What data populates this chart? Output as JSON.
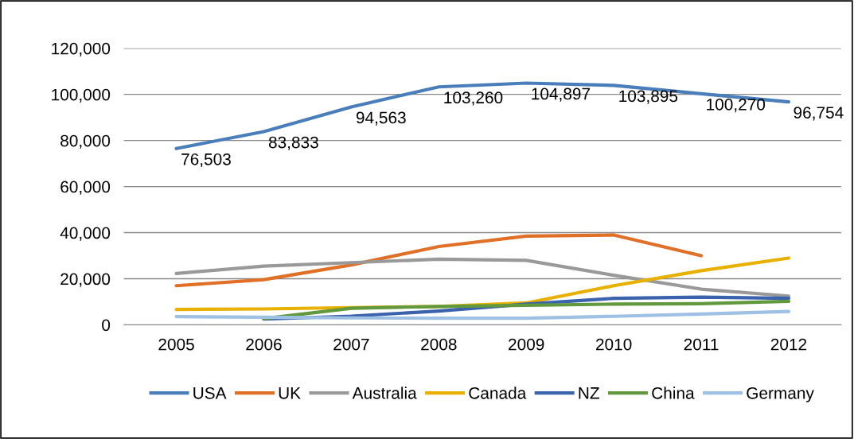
{
  "chart_data": {
    "type": "line",
    "categories": [
      "2005",
      "2006",
      "2007",
      "2008",
      "2009",
      "2010",
      "2011",
      "2012"
    ],
    "ylim": [
      0,
      120000
    ],
    "yticks": [
      0,
      {
        "value": 20000,
        "label": "20,000"
      },
      {
        "value": 40000,
        "label": "40,000"
      },
      {
        "value": 60000,
        "label": "60,000"
      },
      {
        "value": 80000,
        "label": "80,000"
      },
      {
        "value": 100000,
        "label": "100,000"
      },
      {
        "value": 120000,
        "label": "120,000"
      }
    ],
    "grid": "y",
    "legend": "bottom",
    "marker": "none",
    "line_style": "solid",
    "series": [
      {
        "name": "USA",
        "color": "#4a7ebb",
        "values": [
          76503,
          83833,
          94563,
          103260,
          104897,
          103895,
          100270,
          96754
        ],
        "value_labels": [
          "76,503",
          "83,833",
          "94,563",
          "103,260",
          "104,897",
          "103,895",
          "100,270",
          "96,754"
        ]
      },
      {
        "name": "UK",
        "color": "#e07028",
        "values": [
          17000,
          19600,
          26000,
          34000,
          38500,
          39000,
          30000,
          null
        ]
      },
      {
        "name": "Australia",
        "color": "#999999",
        "values": [
          22300,
          25500,
          27000,
          28500,
          28000,
          21500,
          15500,
          12500
        ]
      },
      {
        "name": "Canada",
        "color": "#e8b000",
        "values": [
          6700,
          6900,
          7500,
          8000,
          9500,
          17000,
          23500,
          29000
        ]
      },
      {
        "name": "NZ",
        "color": "#3a62ad",
        "values": [
          null,
          2500,
          3800,
          6000,
          9000,
          11500,
          12000,
          11500
        ]
      },
      {
        "name": "China",
        "color": "#62993e",
        "values": [
          null,
          2700,
          7200,
          8000,
          8500,
          9000,
          9200,
          10200
        ]
      },
      {
        "name": "Germany",
        "color": "#9dc0e4",
        "values": [
          3600,
          3300,
          3000,
          2900,
          2900,
          3700,
          4700,
          5800
        ]
      }
    ]
  }
}
